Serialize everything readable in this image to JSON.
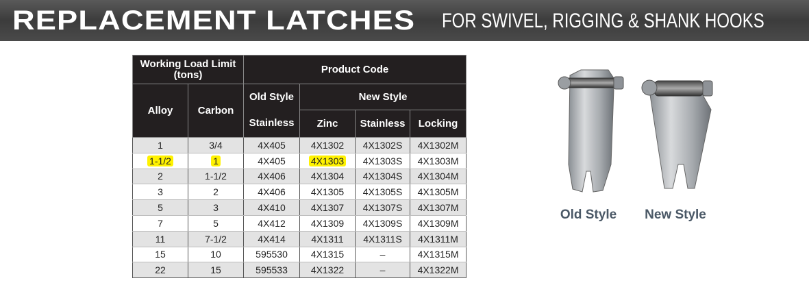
{
  "header": {
    "title": "REPLACEMENT LATCHES",
    "subtitle": "FOR SWIVEL, RIGGING & SHANK HOOKS"
  },
  "table": {
    "headers": {
      "working_load_limit": "Working Load Limit (tons)",
      "product_code": "Product Code",
      "alloy": "Alloy",
      "carbon": "Carbon",
      "old_style": "Old Style",
      "old_stainless": "Stainless",
      "new_style": "New Style",
      "zinc": "Zinc",
      "new_stainless": "Stainless",
      "locking": "Locking"
    },
    "rows": [
      [
        "1",
        "3/4",
        "4X405",
        "4X1302",
        "4X1302S",
        "4X1302M"
      ],
      [
        "1-1/2",
        "1",
        "4X405",
        "4X1303",
        "4X1303S",
        "4X1303M"
      ],
      [
        "2",
        "1-1/2",
        "4X406",
        "4X1304",
        "4X1304S",
        "4X1304M"
      ],
      [
        "3",
        "2",
        "4X406",
        "4X1305",
        "4X1305S",
        "4X1305M"
      ],
      [
        "5",
        "3",
        "4X410",
        "4X1307",
        "4X1307S",
        "4X1307M"
      ],
      [
        "7",
        "5",
        "4X412",
        "4X1309",
        "4X1309S",
        "4X1309M"
      ],
      [
        "11",
        "7-1/2",
        "4X414",
        "4X1311",
        "4X1311S",
        "4X1311M"
      ],
      [
        "15",
        "10",
        "595530",
        "4X1315",
        "–",
        "4X1315M"
      ],
      [
        "22",
        "15",
        "595533",
        "4X1322",
        "–",
        "4X1322M"
      ]
    ]
  },
  "images": [
    {
      "caption": "Old Style"
    },
    {
      "caption": "New Style"
    }
  ]
}
